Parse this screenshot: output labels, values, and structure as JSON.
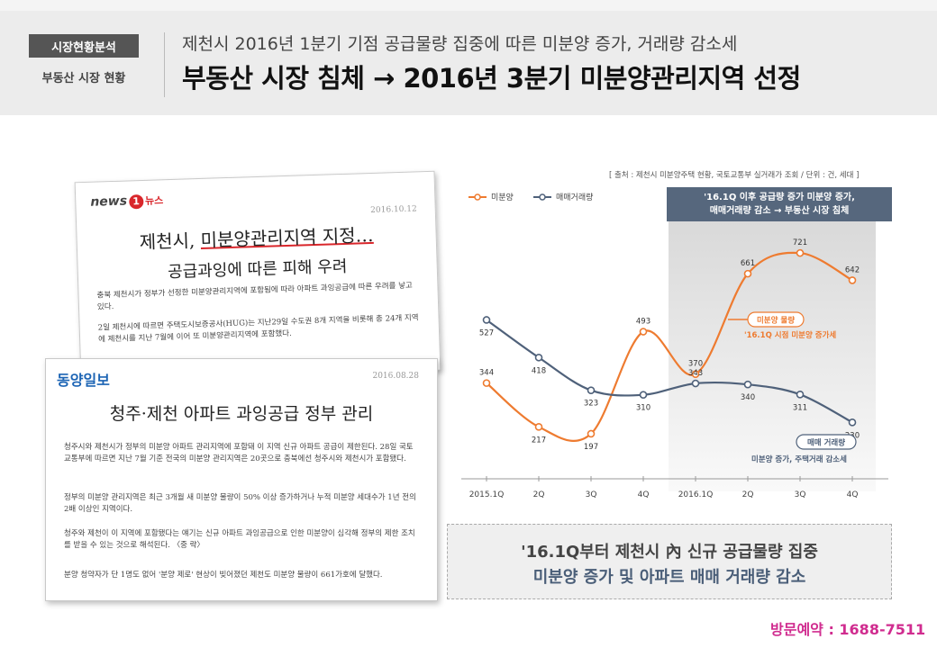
{
  "header": {
    "badge": "시장현황분석",
    "badge_sub": "부동산 시장 현황",
    "subtitle": "제천시 2016년 1분기 기점 공급물량 집중에 따른 미분양 증가, 거래량 감소세",
    "title": "부동산 시장 침체 → 2016년 3분기 미분양관리지역 선정"
  },
  "article1": {
    "logo_en": "news",
    "logo_num": "1",
    "logo_ko": "뉴스",
    "date": "2016.10.12",
    "title_pre": "제천시, ",
    "title_hl": "미분양관리지역 지정…",
    "title2": "공급과잉에 따른 피해 우려",
    "para1": "충북 제천시가 정부가 선정한 미분양관리지역에 포함됨에 따라 아파트 과잉공급에 따른 우려를 낳고 있다.",
    "para2": "2일 제천시에 따르면 주택도시보증공사(HUG)는 지난29일 수도권 8개 지역을 비롯해 총 24개 지역에 제천시를 지난 7월에 이어 또 미분양관리지역에 포함했다."
  },
  "article2": {
    "logo": "동양일보",
    "date": "2016.08.28",
    "title": "청주·제천 아파트 과잉공급 정부 관리",
    "para1": "청주시와 제천시가 정부의 미분양 아파트 관리지역에 포함돼 이 지역 신규 아파트 공급이 제한된다. 28일 국토교통부에 따르면 지난 7월 기준 전국의 미분양 관리지역은 20곳으로 충북에선 청주시와 제천시가 포함됐다.",
    "para2": "정부의 미분양 관리지역은 최근 3개월 새 미분양 물량이 50% 이상 증가하거나 누적 미분양 세대수가 1년 전의 2배 이상인 지역이다.",
    "para3": "청주와 제천이 이 지역에 포함됐다는 얘기는 신규 아파트 과잉공급으로 인한 미분양이 심각해 정부의 제한 조치를 받을 수 있는 것으로 해석된다. 〈중 략〉",
    "para4": "분양 청약자가 단 1명도 없어 '분양 제로' 현상이 빚어졌던 제천도 미분양 물량이 661가호에 달했다."
  },
  "chart": {
    "source": "[ 출처 : 제천시 미분양주택 현황, 국토교통부 실거래가 조회 / 단위 : 건, 세대 ]",
    "callout_line1": "'16.1Q 이후 공급량 증가 미분양 증가,",
    "callout_line2": "매매거래량 감소 → 부동산 시장 침체",
    "label_unsold": "미분양 물량",
    "label_unsold_note": "'16.1Q 시점 미분양 증가세",
    "label_trade": "매매 거래량",
    "label_trade_note": "미분양 증가, 주택거래 감소세"
  },
  "chart_data": {
    "type": "line",
    "categories": [
      "2015.1Q",
      "2Q",
      "3Q",
      "4Q",
      "2016.1Q",
      "2Q",
      "3Q",
      "4Q"
    ],
    "series": [
      {
        "name": "미분양",
        "color": "#ee7b30",
        "values": [
          344,
          217,
          197,
          493,
          370,
          661,
          721,
          642
        ]
      },
      {
        "name": "매매거래량",
        "color": "#4f617a",
        "values": [
          527,
          418,
          323,
          310,
          343,
          340,
          311,
          230
        ]
      }
    ],
    "highlight_categories": [
      "2016.1Q",
      "4Q"
    ],
    "legend_position": "top-left",
    "grid": false
  },
  "note": {
    "line1": "'16.1Q부터 제천시 內 신규 공급물량 집중",
    "line2": "미분양 증가 및 아파트 매매 거래량 감소"
  },
  "footer": {
    "phone": "방문예약 : 1688-7511"
  }
}
